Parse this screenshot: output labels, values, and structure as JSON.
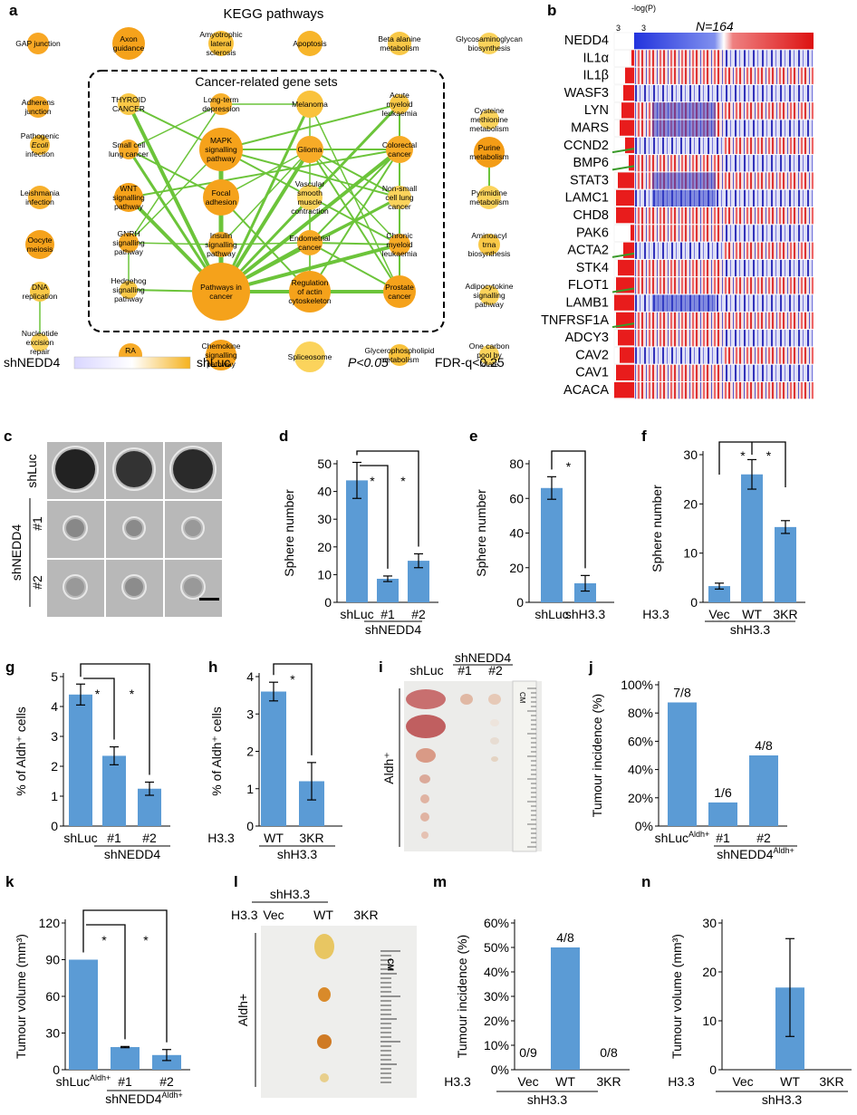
{
  "panel_letters": {
    "a": "a",
    "b": "b",
    "c": "c",
    "d": "d",
    "e": "e",
    "f": "f",
    "g": "g",
    "h": "h",
    "i": "i",
    "j": "j",
    "k": "k",
    "l": "l",
    "m": "m",
    "n": "n"
  },
  "kegg": {
    "title": "KEGG pathways",
    "box_title": "Cancer-related gene sets",
    "legend_left": "shNEDD4",
    "legend_right": "shLuc",
    "pval": "P<0.05",
    "fdr": "FDR-q<0.25",
    "colors": {
      "low": "#e8e6ff",
      "mid": "#ffffff",
      "high": "#f5a21b"
    }
  },
  "heatmap": {
    "axis_label": "-log(P)",
    "tick_left": "3",
    "tick_right": "3",
    "n_label": "N=164",
    "genes": [
      "NEDD4",
      "IL1α",
      "IL1β",
      "WASF3",
      "LYN",
      "MARS",
      "CCND2",
      "BMP6",
      "STAT3",
      "LAMC1",
      "CHD8",
      "PAK6",
      "ACTA2",
      "STK4",
      "FLOT1",
      "LAMB1",
      "TNFRSF1A",
      "ADCY3",
      "CAV2",
      "CAV1",
      "ACACA"
    ]
  },
  "panel_c": {
    "row1": "shLuc",
    "group": "shNEDD4",
    "row2": "#1",
    "row3": "#2"
  },
  "panel_i": {
    "col1": "shLuc",
    "group": "shNEDD4",
    "col2": "#1",
    "col3": "#2",
    "side": "Aldh⁺",
    "ruler": "CM"
  },
  "panel_l": {
    "group": "shH3.3",
    "row_label": "H3.3",
    "col1": "Vec",
    "col2": "WT",
    "col3": "3KR",
    "side": "Aldh+",
    "ruler": "CM"
  },
  "chart_data": [
    {
      "id": "d",
      "type": "bar",
      "ylabel": "Sphere number",
      "ylim": [
        0,
        50
      ],
      "ticks": [
        "0",
        "10",
        "20",
        "30",
        "40",
        "50"
      ],
      "categories": [
        "shLuc",
        "#1",
        "#2"
      ],
      "group_label": "shNEDD4",
      "values": [
        44,
        8.5,
        15
      ],
      "errors": [
        6.5,
        1,
        2.5
      ],
      "sig": [
        "*",
        "*"
      ]
    },
    {
      "id": "e",
      "type": "bar",
      "ylabel": "Sphere number",
      "ylim": [
        0,
        80
      ],
      "ticks": [
        "0",
        "20",
        "40",
        "60",
        "80"
      ],
      "categories": [
        "shLuc",
        "shH3.3"
      ],
      "values": [
        66,
        11
      ],
      "errors": [
        6.5,
        4.5
      ],
      "sig": [
        "*"
      ]
    },
    {
      "id": "f",
      "type": "bar",
      "ylabel": "Sphere number",
      "ylim": [
        0,
        30
      ],
      "ticks": [
        "0",
        "10",
        "20",
        "30"
      ],
      "row_label": "H3.3",
      "categories": [
        "Vec",
        "WT",
        "3KR"
      ],
      "group_label": "shH3.3",
      "values": [
        3.3,
        26,
        15.3
      ],
      "errors": [
        0.6,
        3,
        1.3
      ],
      "sig": [
        "*",
        "*"
      ]
    },
    {
      "id": "g",
      "type": "bar",
      "ylabel": "% of Aldh⁺ cells",
      "ylim": [
        0,
        5
      ],
      "ticks": [
        "0",
        "1",
        "2",
        "3",
        "4",
        "5"
      ],
      "categories": [
        "shLuc",
        "#1",
        "#2"
      ],
      "group_label": "shNEDD4",
      "values": [
        4.4,
        2.35,
        1.25
      ],
      "errors": [
        0.35,
        0.3,
        0.22
      ],
      "sig": [
        "*",
        "*"
      ]
    },
    {
      "id": "h",
      "type": "bar",
      "ylabel": "% of Aldh⁺ cells",
      "ylim": [
        0,
        4
      ],
      "ticks": [
        "0",
        "1",
        "2",
        "3",
        "4"
      ],
      "row_label": "H3.3",
      "categories": [
        "WT",
        "3KR"
      ],
      "group_label": "shH3.3",
      "values": [
        3.6,
        1.2
      ],
      "errors": [
        0.25,
        0.5
      ],
      "sig": [
        "*"
      ]
    },
    {
      "id": "j",
      "type": "bar",
      "ylabel": "Tumour incidence (%)",
      "ylim": [
        0,
        100
      ],
      "ticks": [
        "0%",
        "20%",
        "40%",
        "60%",
        "80%",
        "100%"
      ],
      "categories": [
        "shLucAldh+",
        "#1",
        "#2"
      ],
      "group_label": "shNEDD4Aldh+",
      "values": [
        87.5,
        16.7,
        50
      ],
      "labels": [
        "7/8",
        "1/6",
        "4/8"
      ]
    },
    {
      "id": "k",
      "type": "bar",
      "ylabel": "Tumour volume (mm³)",
      "ylim": [
        0,
        120
      ],
      "ticks": [
        "0",
        "30",
        "60",
        "90",
        "120"
      ],
      "categories": [
        "shLucAldh+",
        "#1",
        "#2"
      ],
      "group_label": "shNEDD4Aldh+",
      "values": [
        90,
        18.5,
        12
      ],
      "errors": [
        0,
        0.5,
        4.5
      ],
      "sig": [
        "*",
        "*"
      ]
    },
    {
      "id": "m",
      "type": "bar",
      "ylabel": "Tumour incidence (%)",
      "ylim": [
        0,
        60
      ],
      "ticks": [
        "0%",
        "10%",
        "20%",
        "30%",
        "40%",
        "50%",
        "60%"
      ],
      "row_label": "H3.3",
      "categories": [
        "Vec",
        "WT",
        "3KR"
      ],
      "group_label": "shH3.3",
      "values": [
        0,
        50,
        0
      ],
      "labels": [
        "0/9",
        "4/8",
        "0/8"
      ]
    },
    {
      "id": "n",
      "type": "bar",
      "ylabel": "Tumour volume (mm³)",
      "ylim": [
        0,
        30
      ],
      "ticks": [
        "0",
        "10",
        "20",
        "30"
      ],
      "row_label": "H3.3",
      "categories": [
        "Vec",
        "WT",
        "3KR"
      ],
      "group_label": "shH3.3",
      "values": [
        0,
        16.8,
        0
      ],
      "errors": [
        0,
        10,
        0
      ]
    }
  ],
  "kegg_nodes": [
    {
      "id": "gap",
      "label": "GAP junction",
      "c": "#f8a724"
    },
    {
      "id": "axon",
      "label": "Axon guidance",
      "c": "#f5a21b"
    },
    {
      "id": "als",
      "label": "Amyotrophic lateral sclerosis",
      "c": "#f9c23c"
    },
    {
      "id": "apop",
      "label": "Apoptosis",
      "c": "#f7b52a"
    },
    {
      "id": "beta",
      "label": "Beta alanine metabolism",
      "c": "#f9c847"
    },
    {
      "id": "gag",
      "label": "Glycosaminoglycan biosynthesis",
      "c": "#fbd35c"
    },
    {
      "id": "adh",
      "label": "Adherens junction",
      "c": "#f7ab27"
    },
    {
      "id": "ecoli",
      "label": "Pathogenic Ecoli infection",
      "c": "#f9be3a"
    },
    {
      "id": "leish",
      "label": "Leishmania infection",
      "c": "#f7b02c"
    },
    {
      "id": "oocyte",
      "label": "Oocyte meiosis",
      "c": "#f5a21b"
    },
    {
      "id": "dna",
      "label": "DNA replication",
      "c": "#f9c847"
    },
    {
      "id": "ner",
      "label": "Nucleotide excision repair",
      "c": "#fbd35c"
    },
    {
      "id": "ra",
      "label": "RA degradation",
      "c": "#f7ab27"
    },
    {
      "id": "chemo",
      "label": "Chemokine signalling pathway",
      "c": "#f5a21b"
    },
    {
      "id": "splice",
      "label": "Spliceosome",
      "c": "#fbd35c"
    },
    {
      "id": "glyc",
      "label": "Glycerophospholipid metabolism",
      "c": "#f9c23c"
    },
    {
      "id": "onec",
      "label": "One carbon pool by folate",
      "c": "#fbd35c"
    },
    {
      "id": "cys",
      "label": "Cysteine methionine metabolism",
      "c": "#fbd35c"
    },
    {
      "id": "purine",
      "label": "Purine metabolism",
      "c": "#f39c16"
    },
    {
      "id": "pyr",
      "label": "Pyrimidine metabolism",
      "c": "#fbd35c"
    },
    {
      "id": "trna",
      "label": "Aminoacyl trna biosynthesis",
      "c": "#f9c847"
    },
    {
      "id": "adipo",
      "label": "Adipocytokine signalling pathway",
      "c": "#fbd35c"
    },
    {
      "id": "thyroid",
      "label": "THYROID CANCER",
      "c": "#f9c847"
    },
    {
      "id": "sclc",
      "label": "Small cell lung cancer",
      "c": "#f7ab27"
    },
    {
      "id": "wnt",
      "label": "WNT signalling pathway",
      "c": "#f5a21b"
    },
    {
      "id": "gnrh",
      "label": "GNRH signalling pathway",
      "c": "#f7ab27"
    },
    {
      "id": "hh",
      "label": "Hedgehog signalling pathway",
      "c": "#f9c847"
    },
    {
      "id": "ltd",
      "label": "Long-term depression",
      "c": "#f7b02c"
    },
    {
      "id": "mapk",
      "label": "MAPK signalling pathway",
      "c": "#f5a21b"
    },
    {
      "id": "focal",
      "label": "Focal adhesion",
      "c": "#f5a21b"
    },
    {
      "id": "insulin",
      "label": "Insulin signalling pathway",
      "c": "#f7ab27"
    },
    {
      "id": "pic",
      "label": "Pathways in cancer",
      "c": "#f5a21b"
    },
    {
      "id": "melanoma",
      "label": "Melanoma",
      "c": "#f9c23c"
    },
    {
      "id": "glioma",
      "label": "Glioma",
      "c": "#f7ab27"
    },
    {
      "id": "vsm",
      "label": "Vascular smooth muscle contraction",
      "c": "#fbd35c"
    },
    {
      "id": "endo",
      "label": "Endometrial cancer",
      "c": "#f7ab27"
    },
    {
      "id": "actin",
      "label": "Regulation of actin cytoskeleton",
      "c": "#f5a21b"
    },
    {
      "id": "aml",
      "label": "Acute myeloid leukaemia",
      "c": "#f9c847"
    },
    {
      "id": "crc",
      "label": "Colorectal cancer",
      "c": "#f7ab27"
    },
    {
      "id": "nsclc",
      "label": "Non-small cell lung cancer",
      "c": "#fbd35c"
    },
    {
      "id": "cml",
      "label": "Chronic myeloid leukaemia",
      "c": "#f7ab27"
    },
    {
      "id": "prostate",
      "label": "Prostate cancer",
      "c": "#f5a21b"
    }
  ]
}
